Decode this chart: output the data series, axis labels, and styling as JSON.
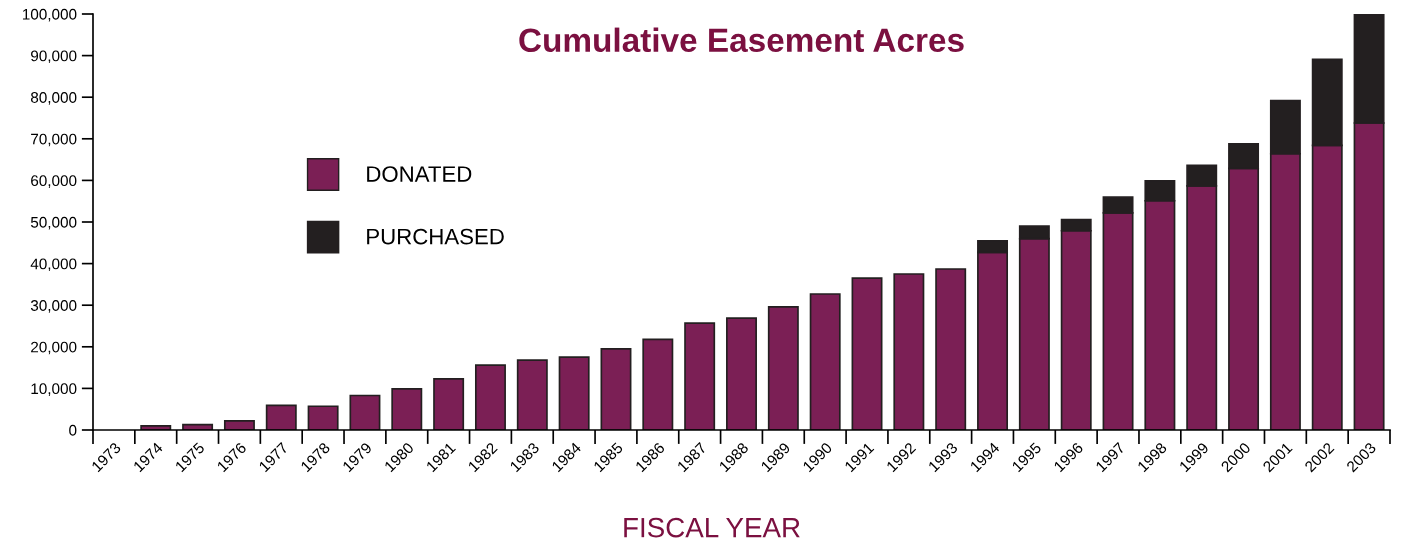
{
  "chart_data": {
    "type": "bar",
    "title": "Cumulative Easement Acres",
    "xlabel": "FISCAL YEAR",
    "stacked": true,
    "legend": "upper left",
    "grid": false,
    "categories": [
      "1973",
      "1974",
      "1975",
      "1976",
      "1977",
      "1978",
      "1979",
      "1980",
      "1981",
      "1982",
      "1983",
      "1984",
      "1985",
      "1986",
      "1987",
      "1988",
      "1989",
      "1990",
      "1991",
      "1992",
      "1993",
      "1994",
      "1995",
      "1996",
      "1997",
      "1998",
      "1999",
      "2000",
      "2001",
      "2002",
      "2003"
    ],
    "series": [
      {
        "name": "DONATED",
        "color": "#7b1f55",
        "values": [
          null,
          1000,
          1300,
          2200,
          5900,
          5700,
          8300,
          9900,
          12300,
          15600,
          16800,
          17500,
          19500,
          21800,
          25700,
          26900,
          29600,
          32700,
          36500,
          37500,
          38700,
          42700,
          46000,
          47900,
          52200,
          55100,
          58700,
          62900,
          66400,
          68400,
          73800
        ]
      },
      {
        "name": "PURCHASED",
        "color": "#231f20",
        "values": [
          null,
          null,
          null,
          null,
          null,
          null,
          null,
          null,
          null,
          null,
          null,
          null,
          null,
          null,
          null,
          null,
          null,
          null,
          null,
          null,
          null,
          2800,
          3000,
          2700,
          3800,
          4800,
          4900,
          5900,
          12800,
          20700,
          26000
        ]
      }
    ],
    "ylim": [
      0,
      100000
    ],
    "yticks": [
      {
        "value": 0,
        "label": "0"
      },
      {
        "value": 10000,
        "label": "10,000"
      },
      {
        "value": 20000,
        "label": "20,000"
      },
      {
        "value": 30000,
        "label": "30,000"
      },
      {
        "value": 40000,
        "label": "40,000"
      },
      {
        "value": 50000,
        "label": "50,000"
      },
      {
        "value": 60000,
        "label": "60,000"
      },
      {
        "value": 70000,
        "label": "70,000"
      },
      {
        "value": 80000,
        "label": "80,000"
      },
      {
        "value": 90000,
        "label": "90,000"
      },
      {
        "value": 100000,
        "label": "100,000"
      }
    ]
  }
}
